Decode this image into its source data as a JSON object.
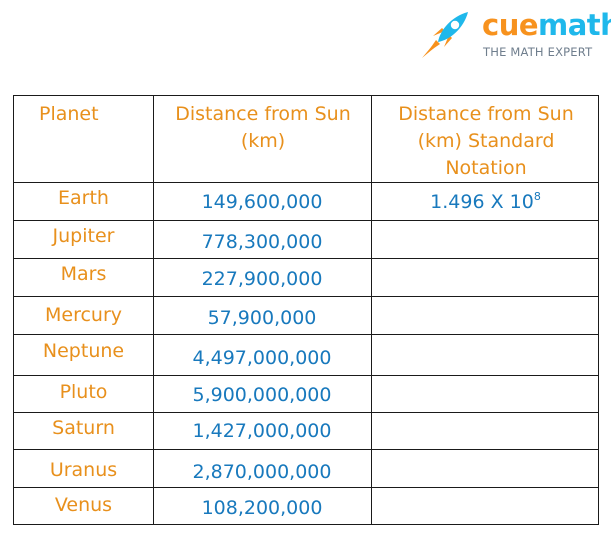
{
  "logo": {
    "brand_cue": "cue",
    "brand_math": "math",
    "tagline": "THE MATH EXPERT",
    "icon": "rocket-icon",
    "colors": {
      "cue": "#f7921e",
      "math": "#1fb8eb",
      "tagline": "#6f7e8d"
    }
  },
  "table": {
    "headers": {
      "planet": "Planet",
      "distance": "Distance from Sun (km)",
      "notation": "Distance from Sun (km) Standard Notation"
    },
    "rows": [
      {
        "planet": "Earth",
        "distance": "149,600,000",
        "notation_base": "1.496 X 10",
        "notation_exp": "8"
      },
      {
        "planet": "Jupiter",
        "distance": "778,300,000",
        "notation_base": "",
        "notation_exp": ""
      },
      {
        "planet": "Mars",
        "distance": "227,900,000",
        "notation_base": "",
        "notation_exp": ""
      },
      {
        "planet": "Mercury",
        "distance": "57,900,000",
        "notation_base": "",
        "notation_exp": ""
      },
      {
        "planet": "Neptune",
        "distance": "4,497,000,000",
        "notation_base": "",
        "notation_exp": ""
      },
      {
        "planet": "Pluto",
        "distance": "5,900,000,000",
        "notation_base": "",
        "notation_exp": ""
      },
      {
        "planet": "Saturn",
        "distance": "1,427,000,000",
        "notation_base": "",
        "notation_exp": ""
      },
      {
        "planet": "Uranus",
        "distance": "2,870,000,000",
        "notation_base": "",
        "notation_exp": ""
      },
      {
        "planet": "Venus",
        "distance": "108,200,000",
        "notation_base": "",
        "notation_exp": ""
      }
    ],
    "colors": {
      "planet_text": "#e8901c",
      "distance_text": "#1879bd",
      "border": "#1a1a1a"
    }
  }
}
